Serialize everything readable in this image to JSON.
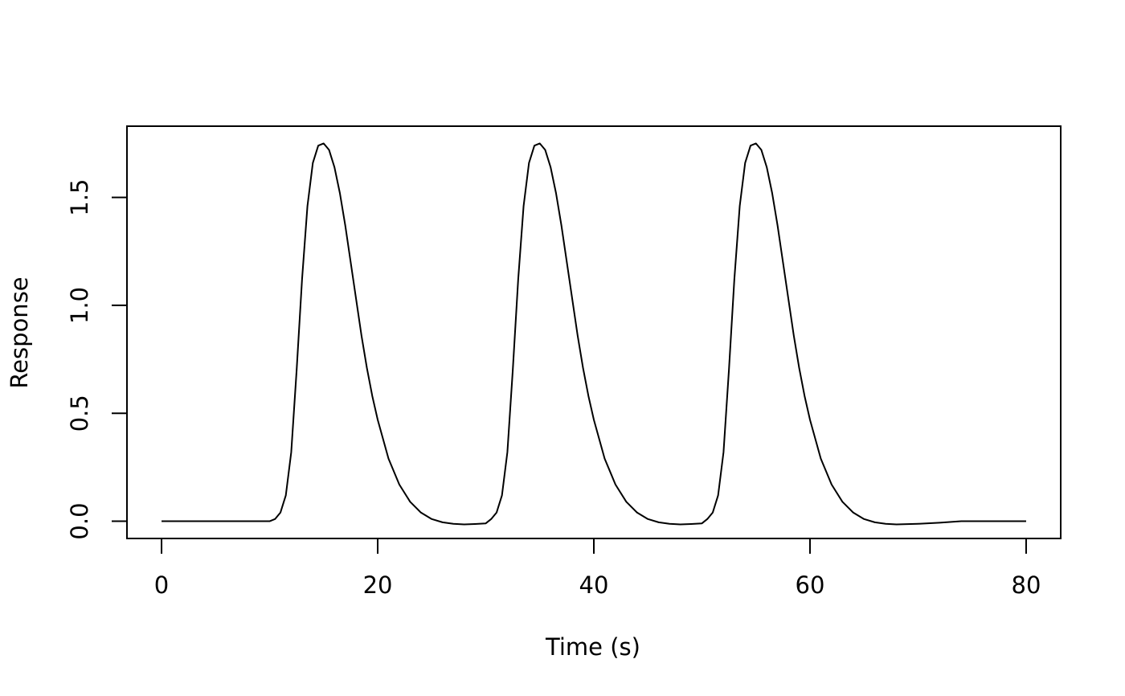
{
  "chart_data": {
    "type": "line",
    "title": "",
    "xlabel": "Time (s)",
    "ylabel": "Response",
    "xlim": [
      -3.2,
      83.2
    ],
    "ylim": [
      -0.08,
      1.83
    ],
    "xticks": [
      0,
      20,
      40,
      60,
      80
    ],
    "xtick_labels": [
      "0",
      "20",
      "40",
      "60",
      "80"
    ],
    "yticks": [
      0.0,
      0.5,
      1.0,
      1.5
    ],
    "ytick_labels": [
      "0.0",
      "0.5",
      "1.0",
      "1.5"
    ],
    "grid": false,
    "legend": "none",
    "line_color": "#000000",
    "series": [
      {
        "x": [
          0,
          10,
          10.5,
          11,
          11.5,
          12,
          12.5,
          13,
          13.5,
          14,
          14.5,
          15,
          15.5,
          16,
          16.5,
          17,
          17.5,
          18,
          18.5,
          19,
          19.5,
          20,
          21,
          22,
          23,
          24,
          25,
          26,
          27,
          28,
          29,
          30,
          30.5,
          31,
          31.5,
          32,
          32.5,
          33,
          33.5,
          34,
          34.5,
          35,
          35.5,
          36,
          36.5,
          37,
          37.5,
          38,
          38.5,
          39,
          39.5,
          40,
          41,
          42,
          43,
          44,
          45,
          46,
          47,
          48,
          49,
          50,
          50.5,
          51,
          51.5,
          52,
          52.5,
          53,
          53.5,
          54,
          54.5,
          55,
          55.5,
          56,
          56.5,
          57,
          57.5,
          58,
          58.5,
          59,
          59.5,
          60,
          61,
          62,
          63,
          64,
          65,
          66,
          67,
          68,
          70,
          72,
          74,
          80
        ],
        "y": [
          0,
          0,
          0.01,
          0.04,
          0.12,
          0.32,
          0.7,
          1.12,
          1.46,
          1.66,
          1.74,
          1.75,
          1.72,
          1.64,
          1.52,
          1.37,
          1.2,
          1.03,
          0.86,
          0.71,
          0.58,
          0.47,
          0.29,
          0.17,
          0.09,
          0.04,
          0.01,
          -0.005,
          -0.012,
          -0.015,
          -0.013,
          -0.01,
          0.01,
          0.04,
          0.12,
          0.32,
          0.7,
          1.12,
          1.46,
          1.66,
          1.74,
          1.75,
          1.72,
          1.64,
          1.52,
          1.37,
          1.2,
          1.03,
          0.86,
          0.71,
          0.58,
          0.47,
          0.29,
          0.17,
          0.09,
          0.04,
          0.01,
          -0.005,
          -0.012,
          -0.015,
          -0.013,
          -0.01,
          0.01,
          0.04,
          0.12,
          0.32,
          0.7,
          1.12,
          1.46,
          1.66,
          1.74,
          1.75,
          1.72,
          1.64,
          1.52,
          1.37,
          1.2,
          1.03,
          0.86,
          0.71,
          0.58,
          0.47,
          0.29,
          0.17,
          0.09,
          0.04,
          0.01,
          -0.005,
          -0.012,
          -0.015,
          -0.012,
          -0.007,
          0,
          0
        ]
      }
    ]
  }
}
